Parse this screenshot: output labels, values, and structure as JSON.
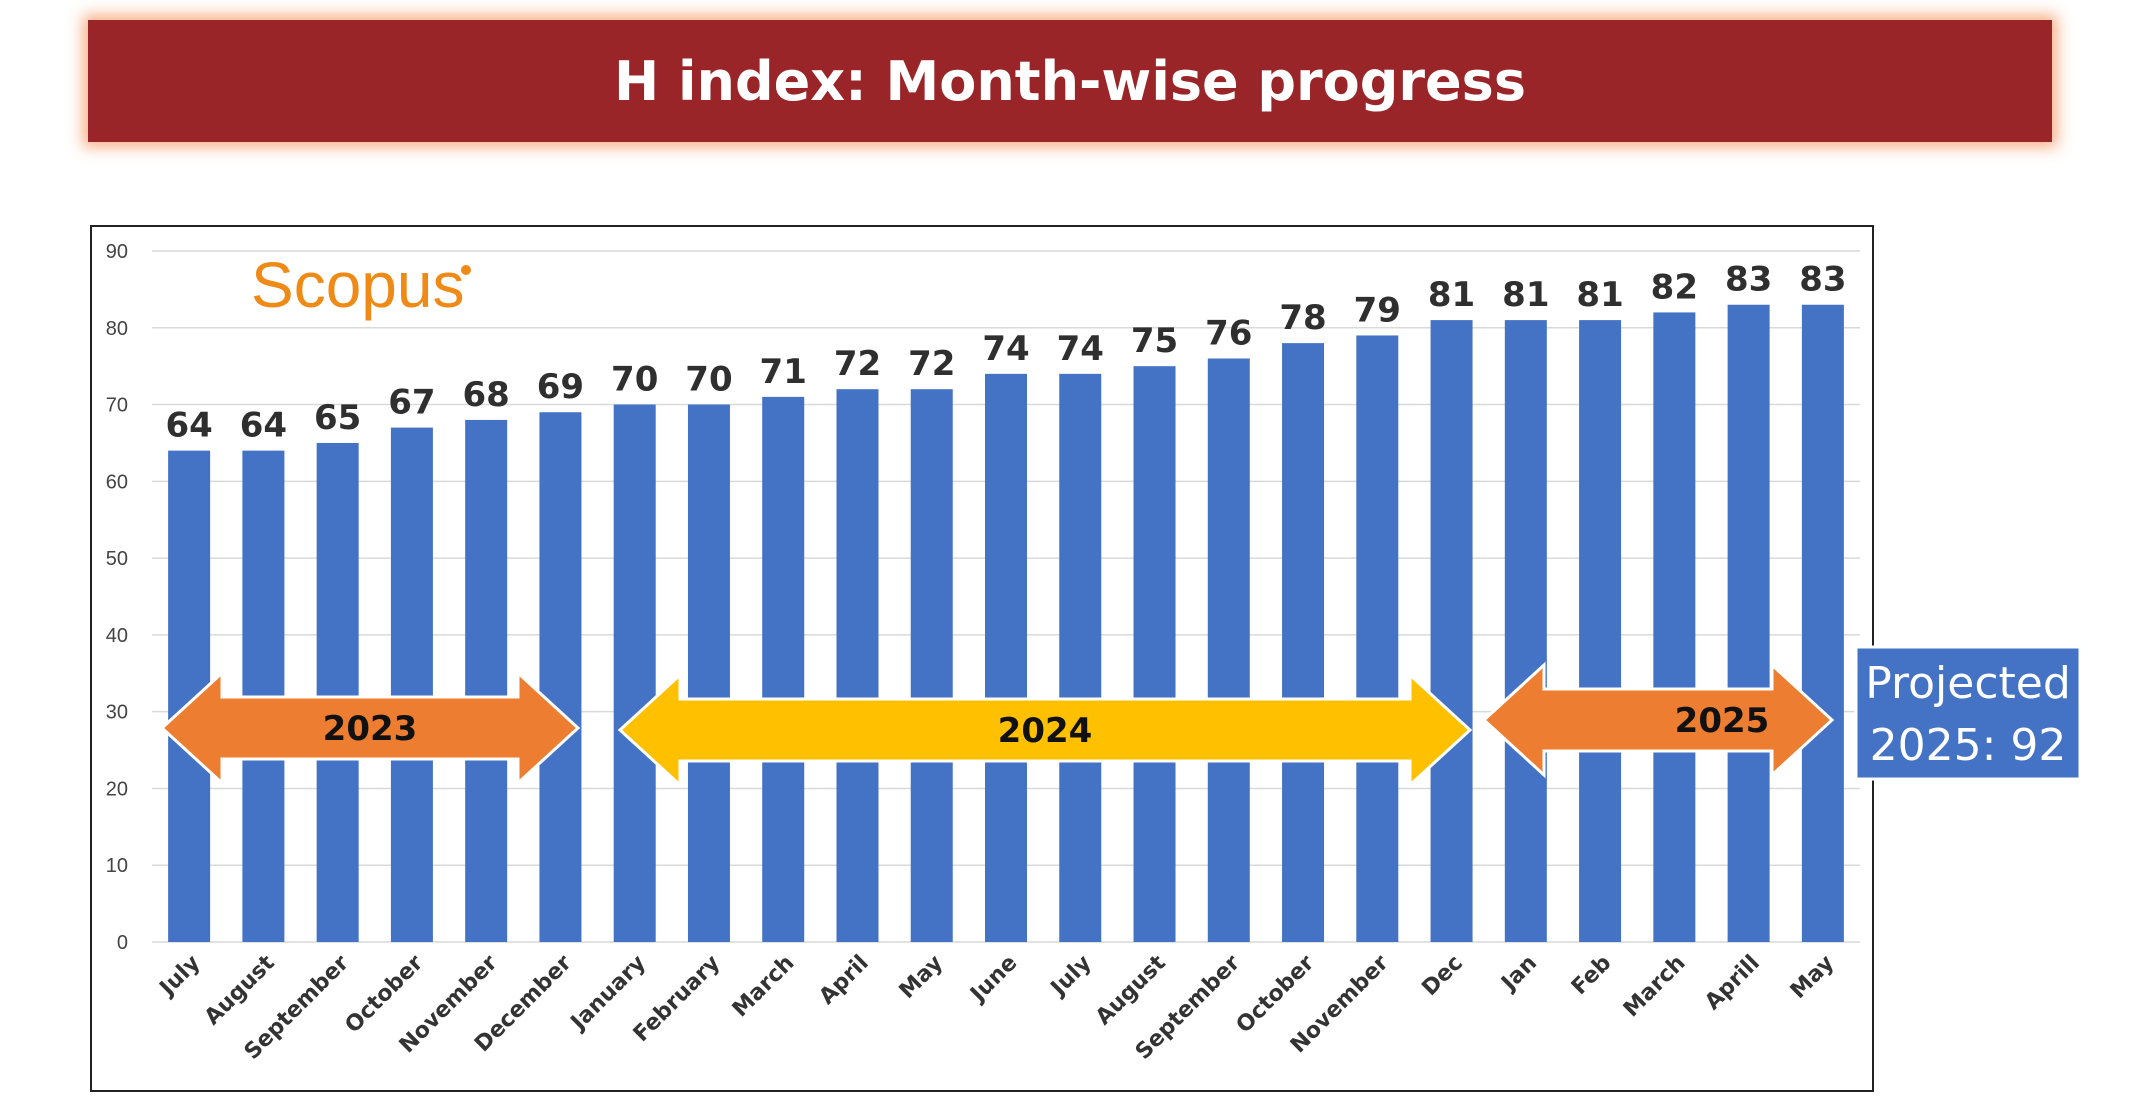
{
  "title": "H index: Month-wise progress",
  "logo_text": "Scopus",
  "colors": {
    "banner": "#992528",
    "bar": "#4472c4",
    "grid": "#d9d9d9",
    "arrow_2023": "#ed7d31",
    "arrow_2024": "#ffc000",
    "arrow_2025": "#ed7d31",
    "projection_box": "#4472c4",
    "logo": "#ef8a17"
  },
  "chart_data": {
    "type": "bar",
    "categories": [
      "July",
      "August",
      "September",
      "October",
      "November",
      "December",
      "January",
      "February",
      "March",
      "April",
      "May",
      "June",
      "July",
      "August",
      "September",
      "October",
      "November",
      "Dec",
      "Jan",
      "Feb",
      "March",
      "Aprill",
      "May"
    ],
    "values": [
      64,
      64,
      65,
      67,
      68,
      69,
      70,
      70,
      71,
      72,
      72,
      74,
      74,
      75,
      76,
      78,
      79,
      81,
      81,
      81,
      82,
      83,
      83
    ],
    "ylim": [
      0,
      90
    ],
    "yticks": [
      0,
      10,
      20,
      30,
      40,
      50,
      60,
      70,
      80,
      90
    ],
    "grid": true,
    "legend": "none",
    "year_arrows": [
      {
        "label": "2023",
        "from_index": 0,
        "to_index": 5
      },
      {
        "label": "2024",
        "from_index": 6,
        "to_index": 17
      },
      {
        "label": "2025",
        "from_index": 18,
        "to_index": 22
      }
    ],
    "projection_label": [
      "Projected",
      "2025: 92"
    ]
  }
}
